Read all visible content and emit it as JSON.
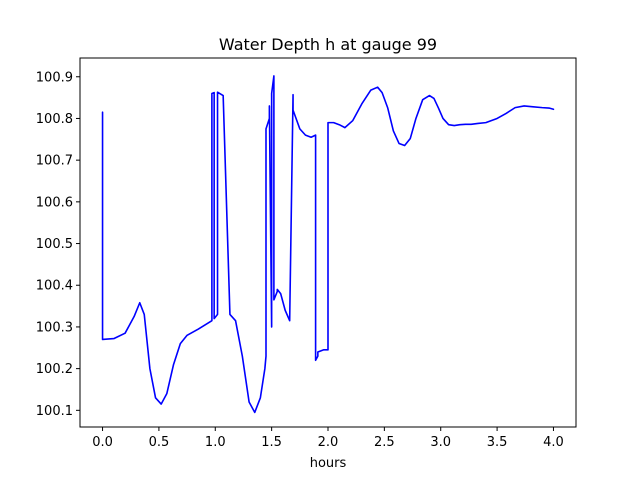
{
  "chart_data": {
    "type": "line",
    "title": "Water Depth h at gauge 99",
    "xlabel": "hours",
    "ylabel": "",
    "xlim": [
      -0.2,
      4.2
    ],
    "ylim": [
      100.06,
      100.945
    ],
    "grid": false,
    "x_ticks": [
      0.0,
      0.5,
      1.0,
      1.5,
      2.0,
      2.5,
      3.0,
      3.5,
      4.0
    ],
    "x_tick_labels": [
      "0.0",
      "0.5",
      "1.0",
      "1.5",
      "2.0",
      "2.5",
      "3.0",
      "3.5",
      "4.0"
    ],
    "y_ticks": [
      100.1,
      100.2,
      100.3,
      100.4,
      100.5,
      100.6,
      100.7,
      100.8,
      100.9
    ],
    "y_tick_labels": [
      "100.1",
      "100.2",
      "100.3",
      "100.4",
      "100.5",
      "100.6",
      "100.7",
      "100.8",
      "100.9"
    ],
    "series": [
      {
        "color": "#0000ff",
        "x": [
          0.0,
          0.0,
          0.1,
          0.2,
          0.28,
          0.33,
          0.37,
          0.42,
          0.47,
          0.52,
          0.57,
          0.63,
          0.69,
          0.75,
          0.85,
          0.97,
          0.97,
          0.99,
          0.99,
          1.02,
          1.02,
          1.07,
          1.13,
          1.18,
          1.24,
          1.3,
          1.35,
          1.4,
          1.44,
          1.45,
          1.45,
          1.48,
          1.48,
          1.5,
          1.5,
          1.52,
          1.52,
          1.55,
          1.55,
          1.58,
          1.62,
          1.66,
          1.69,
          1.69,
          1.75,
          1.8,
          1.85,
          1.89,
          1.89,
          1.91,
          1.91,
          1.96,
          2.0,
          2.0,
          2.05,
          2.1,
          2.15,
          2.22,
          2.3,
          2.38,
          2.44,
          2.48,
          2.53,
          2.58,
          2.63,
          2.68,
          2.73,
          2.78,
          2.84,
          2.9,
          2.94,
          2.98,
          3.02,
          3.07,
          3.12,
          3.17,
          3.22,
          3.27,
          3.33,
          3.4,
          3.5,
          3.58,
          3.66,
          3.74,
          3.82,
          3.9,
          3.96,
          4.0
        ],
        "values": [
          100.815,
          100.27,
          100.272,
          100.285,
          100.325,
          100.358,
          100.33,
          100.2,
          100.13,
          100.115,
          100.14,
          100.21,
          100.26,
          100.28,
          100.295,
          100.315,
          100.86,
          100.862,
          100.32,
          100.33,
          100.863,
          100.855,
          100.33,
          100.315,
          100.23,
          100.12,
          100.095,
          100.13,
          100.2,
          100.23,
          100.775,
          100.8,
          100.83,
          100.3,
          100.86,
          100.902,
          100.365,
          100.385,
          100.39,
          100.38,
          100.34,
          100.315,
          100.857,
          100.82,
          100.775,
          100.76,
          100.755,
          100.76,
          100.22,
          100.23,
          100.24,
          100.245,
          100.245,
          100.79,
          100.79,
          100.785,
          100.778,
          100.795,
          100.835,
          100.868,
          100.875,
          100.862,
          100.825,
          100.77,
          100.74,
          100.735,
          100.752,
          100.8,
          100.845,
          100.855,
          100.848,
          100.825,
          100.8,
          100.785,
          100.783,
          100.785,
          100.786,
          100.786,
          100.788,
          100.79,
          100.8,
          100.812,
          100.826,
          100.83,
          100.828,
          100.826,
          100.825,
          100.822
        ]
      }
    ]
  }
}
